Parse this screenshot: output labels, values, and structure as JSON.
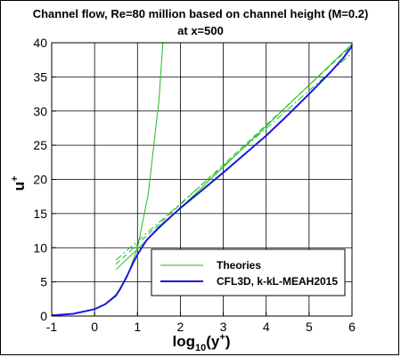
{
  "chart_data": {
    "type": "line",
    "title": "Channel flow, Re=80 million based on channel height (M=0.2)",
    "subtitle": "at x=500",
    "xlabel": "log10(y+)",
    "ylabel": "u+",
    "xlim": [
      -1,
      6
    ],
    "ylim": [
      0,
      40
    ],
    "xticks": [
      "-1",
      "0",
      "1",
      "2",
      "3",
      "4",
      "5",
      "6"
    ],
    "yticks": [
      "0",
      "5",
      "10",
      "15",
      "20",
      "25",
      "30",
      "35",
      "40"
    ],
    "grid": true,
    "legend_position": "bottom-right",
    "legend": {
      "theories_label": "Theories",
      "cfl3d_label": "CFL3D, k-kL-MEAH2015"
    },
    "series": [
      {
        "name": "Theories",
        "style": "solid",
        "color": "#22bb22",
        "x": [
          -1.0,
          -0.5,
          0.0,
          0.25,
          0.5,
          0.75,
          1.0,
          1.25,
          1.5,
          1.7
        ],
        "y": [
          0.1,
          0.32,
          1.0,
          1.78,
          3.16,
          5.62,
          10.0,
          17.8,
          31.6,
          50.1
        ]
      },
      {
        "name": "Theories",
        "style": "solid",
        "color": "#22bb22",
        "x": [
          0.5,
          6.0
        ],
        "y": [
          6.8,
          39.8
        ]
      },
      {
        "name": "Theories",
        "style": "dashed",
        "color": "#22bb22",
        "x": [
          0.5,
          6.0
        ],
        "y": [
          7.6,
          39.6
        ]
      },
      {
        "name": "Theories",
        "style": "dashdot",
        "color": "#22bb22",
        "x": [
          0.5,
          6.0
        ],
        "y": [
          8.2,
          38.5
        ]
      },
      {
        "name": "CFL3D, k-kL-MEAH2015",
        "style": "solid",
        "color": "#1a1adc",
        "x": [
          -1.0,
          -0.5,
          0.0,
          0.25,
          0.5,
          0.6,
          0.75,
          0.9,
          1.0,
          1.2,
          1.5,
          2.0,
          2.5,
          3.0,
          3.5,
          4.0,
          4.5,
          5.0,
          5.5,
          5.8,
          6.0
        ],
        "y": [
          0.1,
          0.32,
          1.0,
          1.75,
          3.0,
          4.0,
          5.8,
          7.8,
          9.0,
          11.0,
          13.0,
          15.8,
          18.4,
          21.0,
          23.7,
          26.4,
          29.4,
          32.5,
          35.7,
          37.8,
          39.5
        ]
      }
    ]
  }
}
